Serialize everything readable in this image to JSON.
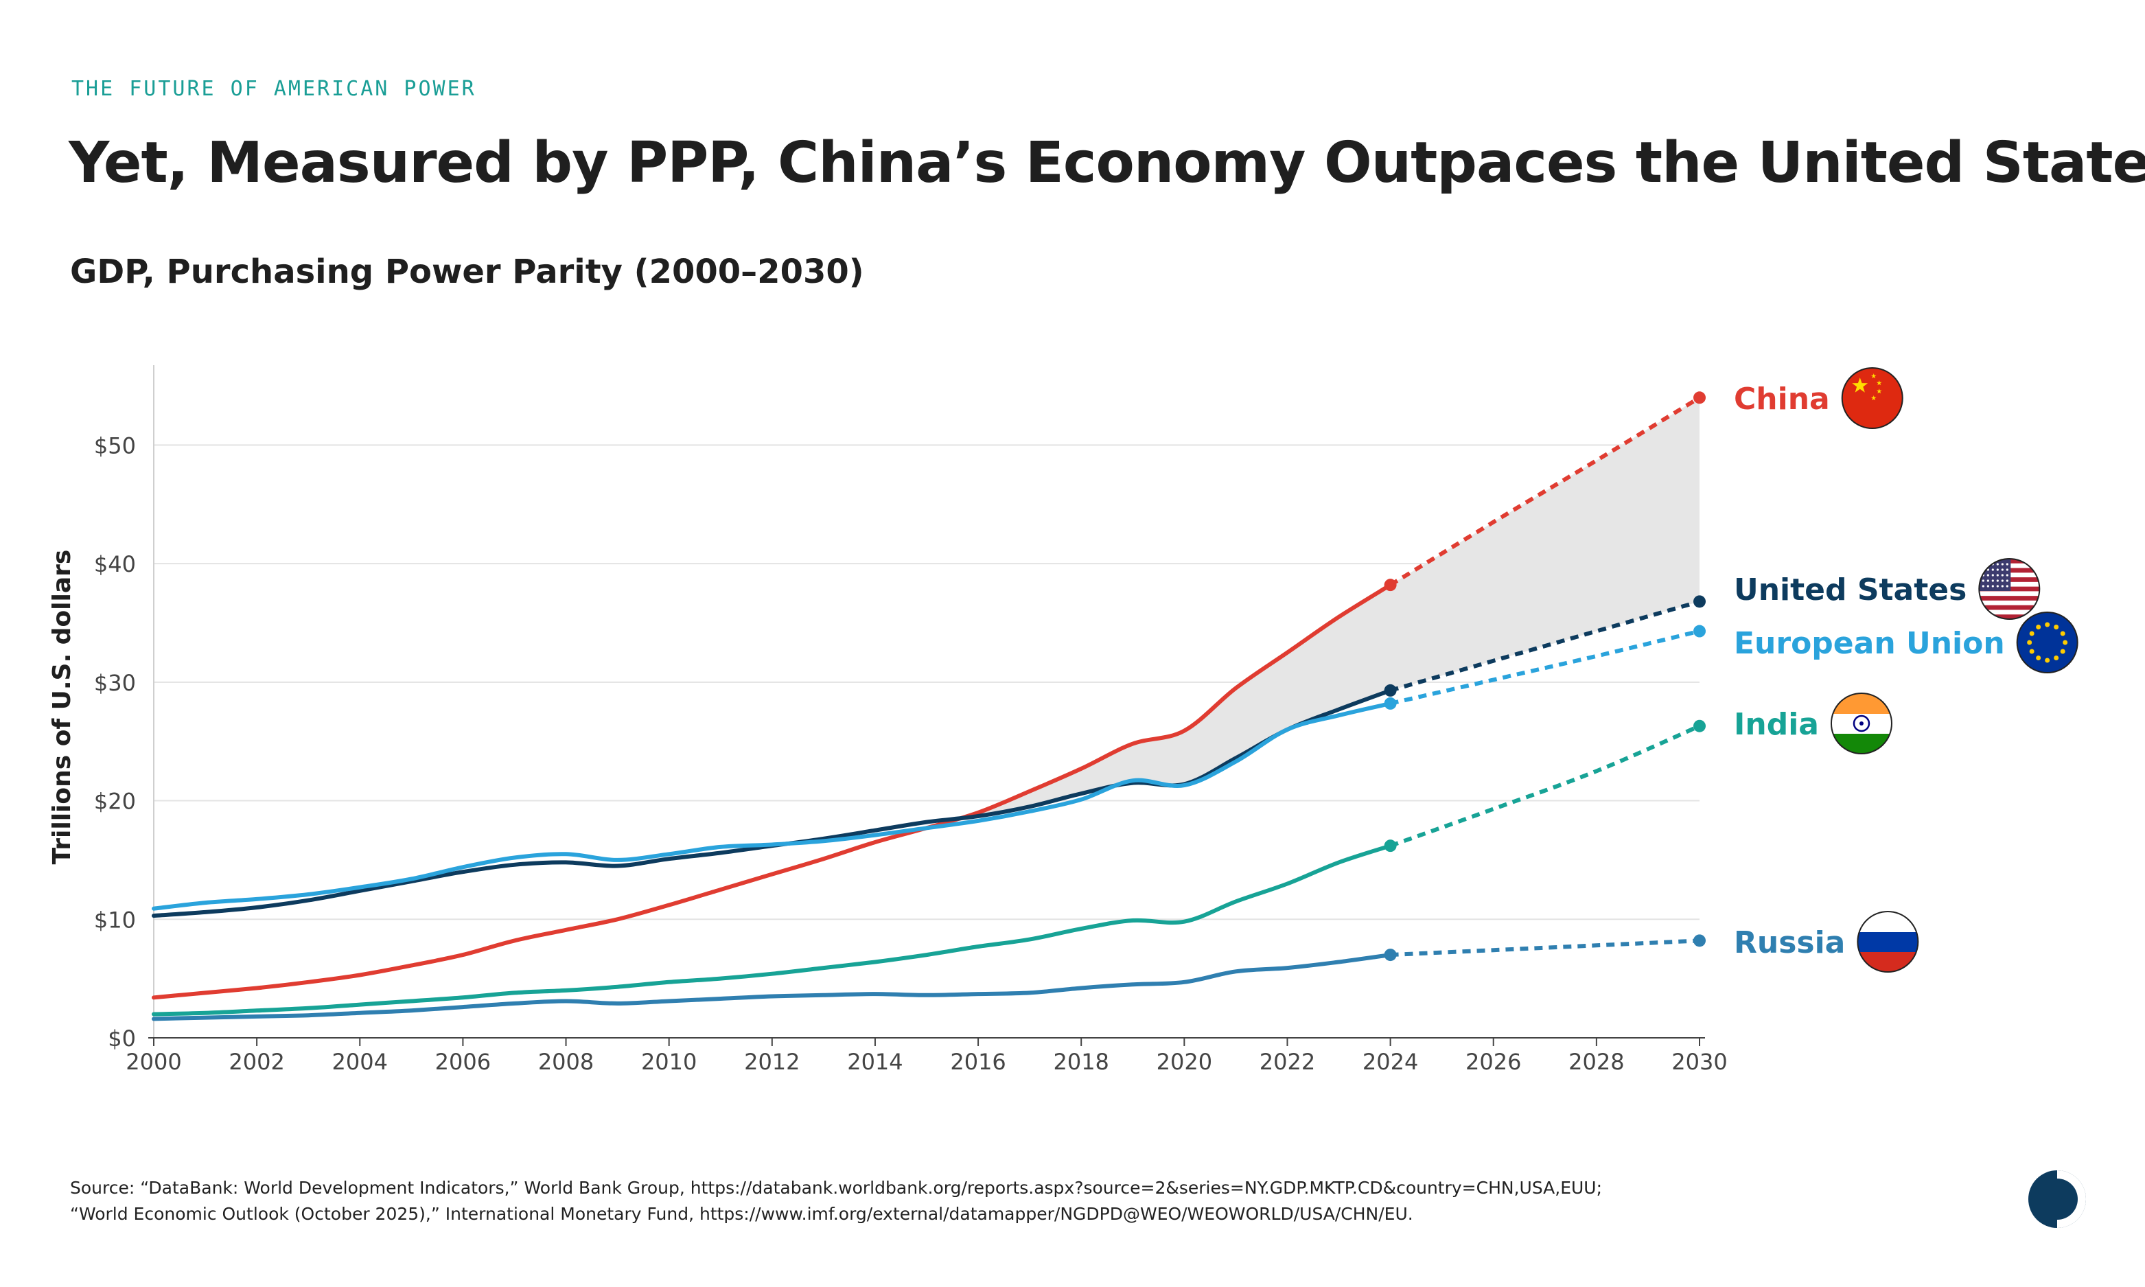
{
  "header": {
    "kicker": "THE FUTURE OF AMERICAN POWER",
    "title": "Yet, Measured by PPP, China’s Economy Outpaces the United States",
    "subtitle": "GDP, Purchasing Power Parity (2000–2030)"
  },
  "footer": {
    "source_line1": "Source: “DataBank: World Development Indicators,” World Bank Group, https://databank.worldbank.org/reports.aspx?source=2&series=NY.GDP.MKTP.CD&country=CHN,USA,EUU;",
    "source_line2": "“World Economic Outlook (October 2025),” International Monetary Fund, https://www.imf.org/external/datamapper/NGDPD@WEO/WEOWORLD/USA/CHN/EU."
  },
  "chart_data": {
    "type": "line",
    "title": "GDP, Purchasing Power Parity (2000–2030)",
    "ylabel": "Trillions of U.S. dollars",
    "xlabel": "",
    "xlim": [
      2000,
      2030
    ],
    "ylim": [
      0,
      55
    ],
    "x_ticks": [
      2000,
      2002,
      2004,
      2006,
      2008,
      2010,
      2012,
      2014,
      2016,
      2018,
      2020,
      2022,
      2024,
      2026,
      2028,
      2030
    ],
    "x_tick_labels": [
      "2000",
      "2002",
      "2004",
      "2006",
      "2008",
      "2010",
      "2012",
      "2014",
      "2016",
      "2018",
      "2020",
      "2022",
      "2024",
      "2026",
      "2028",
      "2030"
    ],
    "y_ticks": [
      0,
      10,
      20,
      30,
      40,
      50
    ],
    "y_tick_labels": [
      "$0",
      "$10",
      "$20",
      "$30",
      "$40",
      "$50"
    ],
    "grid": true,
    "legend": "direct labels at line ends (right)",
    "projection_start": 2024,
    "shaded_gap_between": [
      "China",
      "United States"
    ],
    "series": [
      {
        "name": "China",
        "color": "#e03c31",
        "flag": "china-flag-icon",
        "x": [
          2000,
          2001,
          2002,
          2003,
          2004,
          2005,
          2006,
          2007,
          2008,
          2009,
          2010,
          2011,
          2012,
          2013,
          2014,
          2015,
          2016,
          2017,
          2018,
          2019,
          2020,
          2021,
          2022,
          2023,
          2024
        ],
        "values": [
          3.4,
          3.8,
          4.2,
          4.7,
          5.3,
          6.1,
          7.0,
          8.2,
          9.1,
          10.0,
          11.2,
          12.5,
          13.8,
          15.1,
          16.5,
          17.7,
          19.0,
          20.8,
          22.7,
          24.8,
          25.9,
          29.5,
          32.5,
          35.5,
          38.2
        ],
        "projection_x": [
          2024,
          2026,
          2028,
          2030
        ],
        "projection_values": [
          38.2,
          43.5,
          48.7,
          54.0
        ]
      },
      {
        "name": "United States",
        "color": "#0d3b5e",
        "flag": "us-flag-icon",
        "x": [
          2000,
          2001,
          2002,
          2003,
          2004,
          2005,
          2006,
          2007,
          2008,
          2009,
          2010,
          2011,
          2012,
          2013,
          2014,
          2015,
          2016,
          2017,
          2018,
          2019,
          2020,
          2021,
          2022,
          2023,
          2024
        ],
        "values": [
          10.3,
          10.6,
          11.0,
          11.6,
          12.4,
          13.2,
          14.0,
          14.6,
          14.8,
          14.5,
          15.1,
          15.6,
          16.2,
          16.8,
          17.5,
          18.2,
          18.7,
          19.5,
          20.6,
          21.5,
          21.4,
          23.6,
          26.0,
          27.7,
          29.3
        ],
        "projection_x": [
          2024,
          2026,
          2028,
          2030
        ],
        "projection_values": [
          29.3,
          31.8,
          34.3,
          36.8
        ]
      },
      {
        "name": "European Union",
        "color": "#2aa3dc",
        "flag": "eu-flag-icon",
        "x": [
          2000,
          2001,
          2002,
          2003,
          2004,
          2005,
          2006,
          2007,
          2008,
          2009,
          2010,
          2011,
          2012,
          2013,
          2014,
          2015,
          2016,
          2017,
          2018,
          2019,
          2020,
          2021,
          2022,
          2023,
          2024
        ],
        "values": [
          10.9,
          11.4,
          11.7,
          12.1,
          12.7,
          13.4,
          14.4,
          15.2,
          15.5,
          15.0,
          15.5,
          16.1,
          16.3,
          16.6,
          17.1,
          17.7,
          18.3,
          19.1,
          20.1,
          21.7,
          21.3,
          23.3,
          26.0,
          27.2,
          28.2
        ],
        "projection_x": [
          2024,
          2026,
          2028,
          2030
        ],
        "projection_values": [
          28.2,
          30.2,
          32.2,
          34.3
        ]
      },
      {
        "name": "India",
        "color": "#17a396",
        "flag": "india-flag-icon",
        "x": [
          2000,
          2001,
          2002,
          2003,
          2004,
          2005,
          2006,
          2007,
          2008,
          2009,
          2010,
          2011,
          2012,
          2013,
          2014,
          2015,
          2016,
          2017,
          2018,
          2019,
          2020,
          2021,
          2022,
          2023,
          2024
        ],
        "values": [
          2.0,
          2.1,
          2.3,
          2.5,
          2.8,
          3.1,
          3.4,
          3.8,
          4.0,
          4.3,
          4.7,
          5.0,
          5.4,
          5.9,
          6.4,
          7.0,
          7.7,
          8.3,
          9.2,
          9.9,
          9.8,
          11.5,
          13.0,
          14.8,
          16.2
        ],
        "projection_x": [
          2024,
          2026,
          2028,
          2030
        ],
        "projection_values": [
          16.2,
          19.3,
          22.5,
          26.3
        ]
      },
      {
        "name": "Russia",
        "color": "#2f7fb0",
        "flag": "russia-flag-icon",
        "x": [
          2000,
          2001,
          2002,
          2003,
          2004,
          2005,
          2006,
          2007,
          2008,
          2009,
          2010,
          2011,
          2012,
          2013,
          2014,
          2015,
          2016,
          2017,
          2018,
          2019,
          2020,
          2021,
          2022,
          2023,
          2024
        ],
        "values": [
          1.6,
          1.7,
          1.8,
          1.9,
          2.1,
          2.3,
          2.6,
          2.9,
          3.1,
          2.9,
          3.1,
          3.3,
          3.5,
          3.6,
          3.7,
          3.6,
          3.7,
          3.8,
          4.2,
          4.5,
          4.7,
          5.6,
          5.9,
          6.4,
          7.0
        ],
        "projection_x": [
          2024,
          2026,
          2028,
          2030
        ],
        "projection_values": [
          7.0,
          7.4,
          7.8,
          8.2
        ]
      }
    ]
  }
}
